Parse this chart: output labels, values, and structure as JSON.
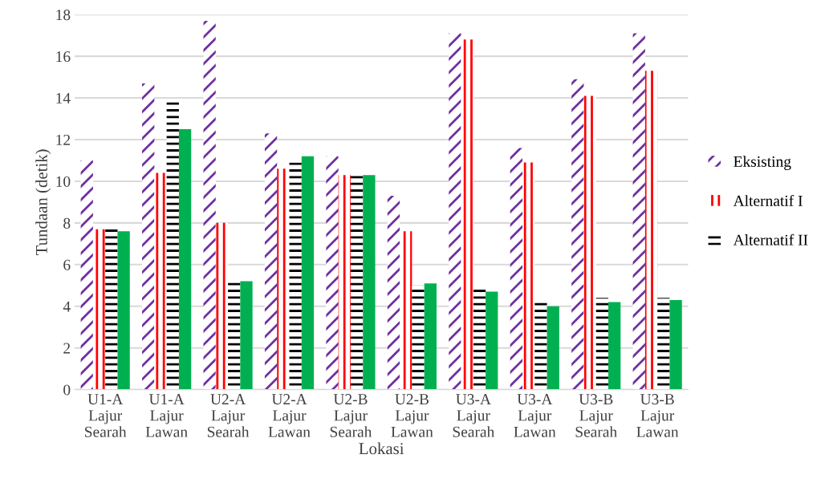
{
  "chart_data": {
    "type": "bar",
    "xlabel": "Lokasi",
    "ylabel": "Tundaan (detik)",
    "categories": [
      "U1-A\nLajur\nSearah",
      "U1-A\nLajur\nLawan",
      "U2-A\nLajur\nSearah",
      "U2-A\nLajur\nLawan",
      "U2-B\nLajur\nSearah",
      "U2-B\nLajur\nLawan",
      "U3-A\nLajur\nSearah",
      "U3-A\nLajur\nLawan",
      "U3-B\nLajur\nSearah",
      "U3-B\nLajur\nLawan"
    ],
    "series": [
      {
        "name": "Eksisting",
        "color": "#7030a0",
        "values": [
          11.0,
          14.7,
          17.7,
          12.3,
          11.2,
          9.3,
          17.1,
          11.6,
          14.9,
          17.1
        ]
      },
      {
        "name": "Alternatif I",
        "color": "#ff0000",
        "values": [
          7.7,
          10.4,
          8.0,
          10.6,
          10.3,
          7.6,
          16.8,
          10.9,
          14.1,
          15.3
        ]
      },
      {
        "name": "Alternatif II",
        "color": "#000000",
        "values": [
          7.8,
          13.9,
          5.2,
          10.9,
          10.4,
          5.0,
          4.9,
          4.2,
          4.4,
          4.4
        ]
      },
      {
        "color": "#00b050",
        "values": [
          7.6,
          12.5,
          5.2,
          11.2,
          10.3,
          5.1,
          4.7,
          4.0,
          4.2,
          4.3
        ]
      }
    ],
    "ylim": [
      0,
      18
    ],
    "yticks": [
      0,
      2,
      4,
      6,
      8,
      10,
      12,
      14,
      16,
      18
    ],
    "grid": "y",
    "legend": "right"
  }
}
